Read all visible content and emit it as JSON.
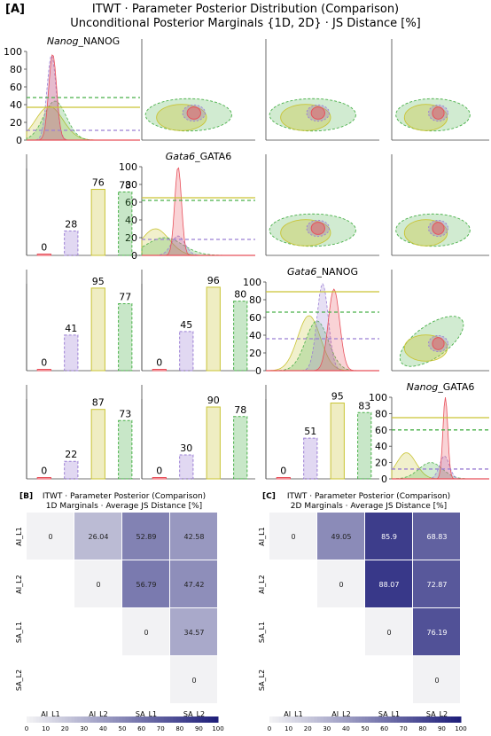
{
  "panel_a": {
    "tag": "[A]",
    "title_line1": "ITWT · Parameter Posterior Distribution (Comparison)",
    "title_line2": "Unconditional Posterior Marginals {1D, 2D} · JS Distance [%]"
  },
  "panel_b": {
    "tag": "[B]",
    "title_line1": "ITWT · Parameter Posterior (Comparison)",
    "title_line2": "1D Marginals · Average JS Distance [%]"
  },
  "panel_c": {
    "tag": "[C]",
    "title_line1": "ITWT · Parameter Posterior (Comparison)",
    "title_line2": "2D Marginals · Average JS Distance [%]"
  },
  "colors": {
    "AI_L1": "#e8505b",
    "AI_L2": "#9b7fd4",
    "SA_L1": "#c9c435",
    "SA_L2": "#49b049",
    "heatmap_low": "#f2f2f4",
    "heatmap_high": "#1f1f7a"
  },
  "chart_data": [
    {
      "type": "line",
      "panel": "diag_1",
      "title_italic": "Nanog",
      "title_rest": "_NANOG",
      "yticks": [
        0,
        20,
        40,
        60,
        80,
        100
      ],
      "ylim": [
        0,
        100
      ],
      "peaks": {
        "AI_L1": 97,
        "AI_L2": 96,
        "SA_L1": 38,
        "SA_L2": 44
      },
      "hlines": {
        "SA_L1": 37,
        "SA_L2": 48,
        "AI_L2": 11,
        "AI_L1": 0
      }
    },
    {
      "type": "line",
      "panel": "diag_2",
      "title_italic": "Gata6",
      "title_rest": "_GATA6",
      "yticks": [
        0,
        20,
        40,
        60,
        80,
        100
      ],
      "ylim": [
        0,
        100
      ],
      "peaks": {
        "AI_L1": 100,
        "AI_L2": 22,
        "SA_L1": 30,
        "SA_L2": 20
      },
      "hlines": {
        "SA_L1": 65,
        "SA_L2": 62,
        "AI_L2": 18,
        "AI_L1": 0
      }
    },
    {
      "type": "line",
      "panel": "diag_3",
      "title_italic": "Gata6",
      "title_rest": "_NANOG",
      "yticks": [
        0,
        20,
        40,
        60,
        80,
        100
      ],
      "ylim": [
        0,
        100
      ],
      "peaks": {
        "AI_L1": 92,
        "AI_L2": 98,
        "SA_L1": 62,
        "SA_L2": 56
      },
      "hlines": {
        "SA_L1": 89,
        "SA_L2": 66,
        "AI_L2": 36,
        "AI_L1": 0
      }
    },
    {
      "type": "line",
      "panel": "diag_4",
      "title_italic": "Nanog",
      "title_rest": "_GATA6",
      "yticks": [
        0,
        20,
        40,
        60,
        80,
        100
      ],
      "ylim": [
        0,
        100
      ],
      "peaks": {
        "AI_L1": 100,
        "AI_L2": 28,
        "SA_L1": 32,
        "SA_L2": 20
      },
      "hlines": {
        "SA_L1": 75,
        "SA_L2": 60,
        "AI_L2": 12,
        "AI_L1": 0
      }
    },
    {
      "type": "bar",
      "panel": "lower_2_1",
      "categories": [
        "AI_L1",
        "AI_L2",
        "SA_L1",
        "SA_L2"
      ],
      "values": [
        0,
        28,
        76,
        73
      ],
      "ylim": [
        0,
        100
      ]
    },
    {
      "type": "bar",
      "panel": "lower_3_1",
      "categories": [
        "AI_L1",
        "AI_L2",
        "SA_L1",
        "SA_L2"
      ],
      "values": [
        0,
        41,
        95,
        77
      ],
      "ylim": [
        0,
        100
      ]
    },
    {
      "type": "bar",
      "panel": "lower_3_2",
      "categories": [
        "AI_L1",
        "AI_L2",
        "SA_L1",
        "SA_L2"
      ],
      "values": [
        0,
        45,
        96,
        80
      ],
      "ylim": [
        0,
        100
      ]
    },
    {
      "type": "bar",
      "panel": "lower_4_1",
      "categories": [
        "AI_L1",
        "AI_L2",
        "SA_L1",
        "SA_L2"
      ],
      "values": [
        0,
        22,
        87,
        73
      ],
      "ylim": [
        0,
        100
      ]
    },
    {
      "type": "bar",
      "panel": "lower_4_2",
      "categories": [
        "AI_L1",
        "AI_L2",
        "SA_L1",
        "SA_L2"
      ],
      "values": [
        0,
        30,
        90,
        78
      ],
      "ylim": [
        0,
        100
      ]
    },
    {
      "type": "bar",
      "panel": "lower_4_3",
      "categories": [
        "AI_L1",
        "AI_L2",
        "SA_L1",
        "SA_L2"
      ],
      "values": [
        0,
        51,
        95,
        83
      ],
      "ylim": [
        0,
        100
      ]
    },
    {
      "type": "heatmap",
      "panel": "B",
      "rows": [
        "AI_L1",
        "AI_L2",
        "SA_L1",
        "SA_L2"
      ],
      "cols": [
        "AI_L1",
        "AI_L2",
        "SA_L1",
        "SA_L2"
      ],
      "cells": [
        [
          "0",
          "26.04",
          "52.89",
          "42.58"
        ],
        [
          null,
          "0",
          "56.79",
          "47.42"
        ],
        [
          null,
          null,
          "0",
          "34.57"
        ],
        [
          null,
          null,
          null,
          "0"
        ]
      ],
      "colorbar_ticks": [
        0,
        10,
        20,
        30,
        40,
        50,
        60,
        70,
        80,
        90,
        100
      ],
      "vlim": [
        0,
        100
      ]
    },
    {
      "type": "heatmap",
      "panel": "C",
      "rows": [
        "AI_L1",
        "AI_L2",
        "SA_L1",
        "SA_L2"
      ],
      "cols": [
        "AI_L1",
        "AI_L2",
        "SA_L1",
        "SA_L2"
      ],
      "cells": [
        [
          "0",
          "49.05",
          "85.9",
          "68.83"
        ],
        [
          null,
          "0",
          "88.07",
          "72.87"
        ],
        [
          null,
          null,
          "0",
          "76.19"
        ],
        [
          null,
          null,
          null,
          "0"
        ]
      ],
      "colorbar_ticks": [
        0,
        10,
        20,
        30,
        40,
        50,
        60,
        70,
        80,
        90,
        100
      ],
      "vlim": [
        0,
        100
      ]
    }
  ]
}
